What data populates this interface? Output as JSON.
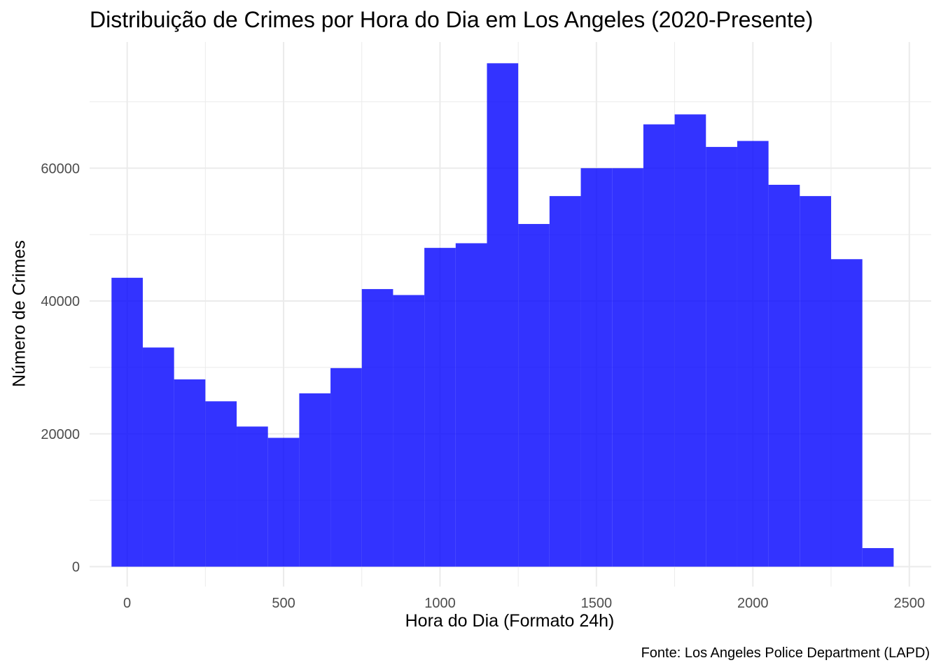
{
  "chart_data": {
    "type": "bar",
    "title": "Distribuição de Crimes por Hora do Dia em Los Angeles (2020-Presente)",
    "xlabel": "Hora do Dia (Formato 24h)",
    "ylabel": "Número de Crimes",
    "caption": "Fonte: Los Angeles Police Department (LAPD)",
    "bin_width": 100,
    "bins": [
      {
        "x": 0,
        "count": 43500
      },
      {
        "x": 100,
        "count": 33000
      },
      {
        "x": 200,
        "count": 28200
      },
      {
        "x": 300,
        "count": 24900
      },
      {
        "x": 400,
        "count": 21100
      },
      {
        "x": 500,
        "count": 19400
      },
      {
        "x": 600,
        "count": 26100
      },
      {
        "x": 700,
        "count": 29900
      },
      {
        "x": 800,
        "count": 41800
      },
      {
        "x": 900,
        "count": 40900
      },
      {
        "x": 1000,
        "count": 48000
      },
      {
        "x": 1100,
        "count": 48700
      },
      {
        "x": 1200,
        "count": 75800
      },
      {
        "x": 1300,
        "count": 51600
      },
      {
        "x": 1400,
        "count": 55800
      },
      {
        "x": 1500,
        "count": 60000
      },
      {
        "x": 1600,
        "count": 60000
      },
      {
        "x": 1700,
        "count": 66600
      },
      {
        "x": 1800,
        "count": 68100
      },
      {
        "x": 1900,
        "count": 63200
      },
      {
        "x": 2000,
        "count": 64100
      },
      {
        "x": 2100,
        "count": 57500
      },
      {
        "x": 2200,
        "count": 55800
      },
      {
        "x": 2300,
        "count": 46300
      },
      {
        "x": 2400,
        "count": 2800
      }
    ],
    "xlim": [
      -120,
      2570
    ],
    "ylim": [
      -3000,
      79000
    ],
    "x_ticks": [
      0,
      500,
      1000,
      1500,
      2000,
      2500
    ],
    "x_tick_labels": [
      "0",
      "500",
      "1000",
      "1500",
      "2000",
      "2500"
    ],
    "y_ticks": [
      0,
      20000,
      40000,
      60000
    ],
    "y_tick_labels": [
      "0",
      "20000",
      "40000",
      "60000"
    ],
    "grid": true,
    "colors": {
      "bar": "#0000FF",
      "grid": "#EBEBEB",
      "tick_text": "#4D4D4D"
    }
  }
}
